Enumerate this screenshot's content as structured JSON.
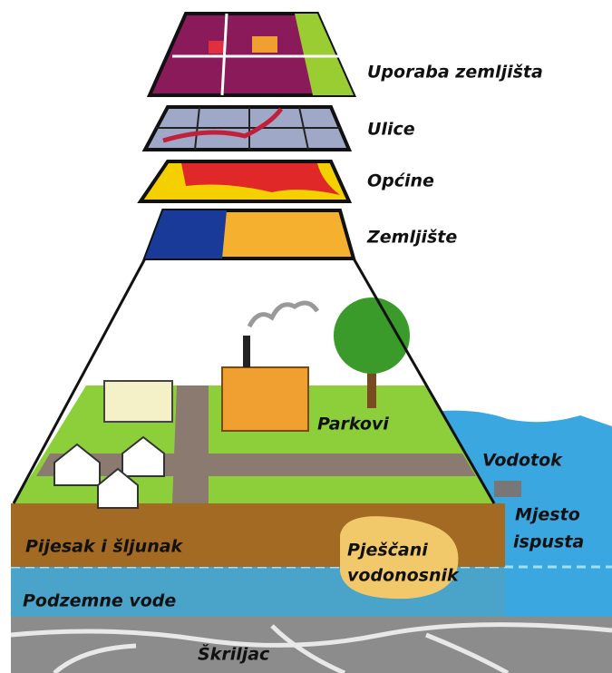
{
  "layers": [
    {
      "label": "Uporaba zemljišta"
    },
    {
      "label": "Ulice"
    },
    {
      "label": "Općine"
    },
    {
      "label": "Zemljište"
    }
  ],
  "scene": {
    "parks": "Parkovi",
    "stream": "Vodotok",
    "outlet": [
      "Mjesto",
      "ispusta"
    ],
    "sand_gravel": "Pijesak i šljunak",
    "aquifer": [
      "Pješčani",
      "vodonosnik"
    ],
    "groundwater": "Podzemne vode",
    "bedrock": "Škriljac"
  }
}
